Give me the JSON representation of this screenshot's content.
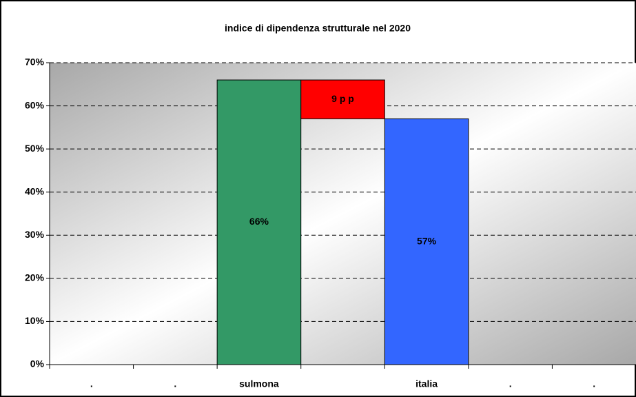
{
  "chart_data": {
    "type": "waterfall",
    "title": "indice di dipendenza strutturale nel 2020",
    "categories": [
      ".",
      ".",
      "sulmona",
      null,
      "italia",
      ".",
      "."
    ],
    "values": [
      null,
      null,
      66,
      9,
      57,
      null,
      null
    ],
    "value_labels": [
      null,
      null,
      "66%",
      "9 p p",
      "57%",
      null,
      null
    ],
    "colors": [
      null,
      null,
      "#339966",
      "#ff0000",
      "#3366ff",
      null,
      null
    ],
    "ylim": [
      0,
      70
    ],
    "yticks": [
      {
        "value": 0,
        "label": "0%"
      },
      {
        "value": 10,
        "label": "10%"
      },
      {
        "value": 20,
        "label": "20%"
      },
      {
        "value": 30,
        "label": "30%"
      },
      {
        "value": 40,
        "label": "40%"
      },
      {
        "value": 50,
        "label": "50%"
      },
      {
        "value": 60,
        "label": "60%"
      },
      {
        "value": 70,
        "label": "70%"
      }
    ],
    "grid": true
  }
}
